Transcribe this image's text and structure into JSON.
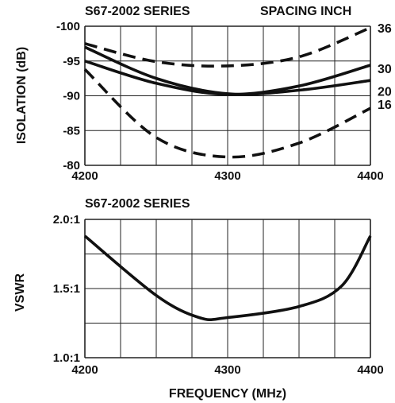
{
  "chart_data": [
    {
      "type": "line",
      "title": "S67-2002 SERIES",
      "legend_title": "SPACING INCH",
      "xlabel": "",
      "ylabel": "ISOLATION (dB)",
      "xlim": [
        4200,
        4400
      ],
      "ylim": [
        -80,
        -100
      ],
      "x_ticks": [
        "4200",
        "4300",
        "4400"
      ],
      "y_ticks": [
        "-100",
        "-95",
        "-90",
        "-85",
        "-80"
      ],
      "grid": true,
      "series": [
        {
          "name": "36",
          "style": "dashed",
          "x": [
            4200,
            4250,
            4300,
            4350,
            4400
          ],
          "y": [
            -97.5,
            -94.9,
            -94.3,
            -95.6,
            -99.8
          ]
        },
        {
          "name": "30",
          "style": "solid",
          "x": [
            4200,
            4250,
            4300,
            4350,
            4400
          ],
          "y": [
            -95.0,
            -91.8,
            -90.2,
            -91.4,
            -94.4
          ]
        },
        {
          "name": "20",
          "style": "solid",
          "x": [
            4200,
            4250,
            4300,
            4350,
            4400
          ],
          "y": [
            -97.0,
            -92.5,
            -90.3,
            -90.8,
            -92.2
          ]
        },
        {
          "name": "16",
          "style": "dashed",
          "x": [
            4200,
            4250,
            4300,
            4350,
            4400
          ],
          "y": [
            -93.8,
            -84.0,
            -81.2,
            -83.2,
            -88.2
          ]
        }
      ]
    },
    {
      "type": "line",
      "title": "S67-2002 SERIES",
      "xlabel": "FREQUENCY (MHz)",
      "ylabel": "VSWR",
      "xlim": [
        4200,
        4400
      ],
      "ylim": [
        1.0,
        2.0
      ],
      "x_ticks": [
        "4200",
        "4300",
        "4400"
      ],
      "y_ticks": [
        "2.0:1",
        "1.5:1",
        "1.0:1"
      ],
      "grid": true,
      "series": [
        {
          "x": [
            4200,
            4250,
            4280,
            4300,
            4350,
            4380,
            4400
          ],
          "y": [
            1.88,
            1.45,
            1.29,
            1.29,
            1.37,
            1.52,
            1.88
          ]
        }
      ]
    }
  ]
}
